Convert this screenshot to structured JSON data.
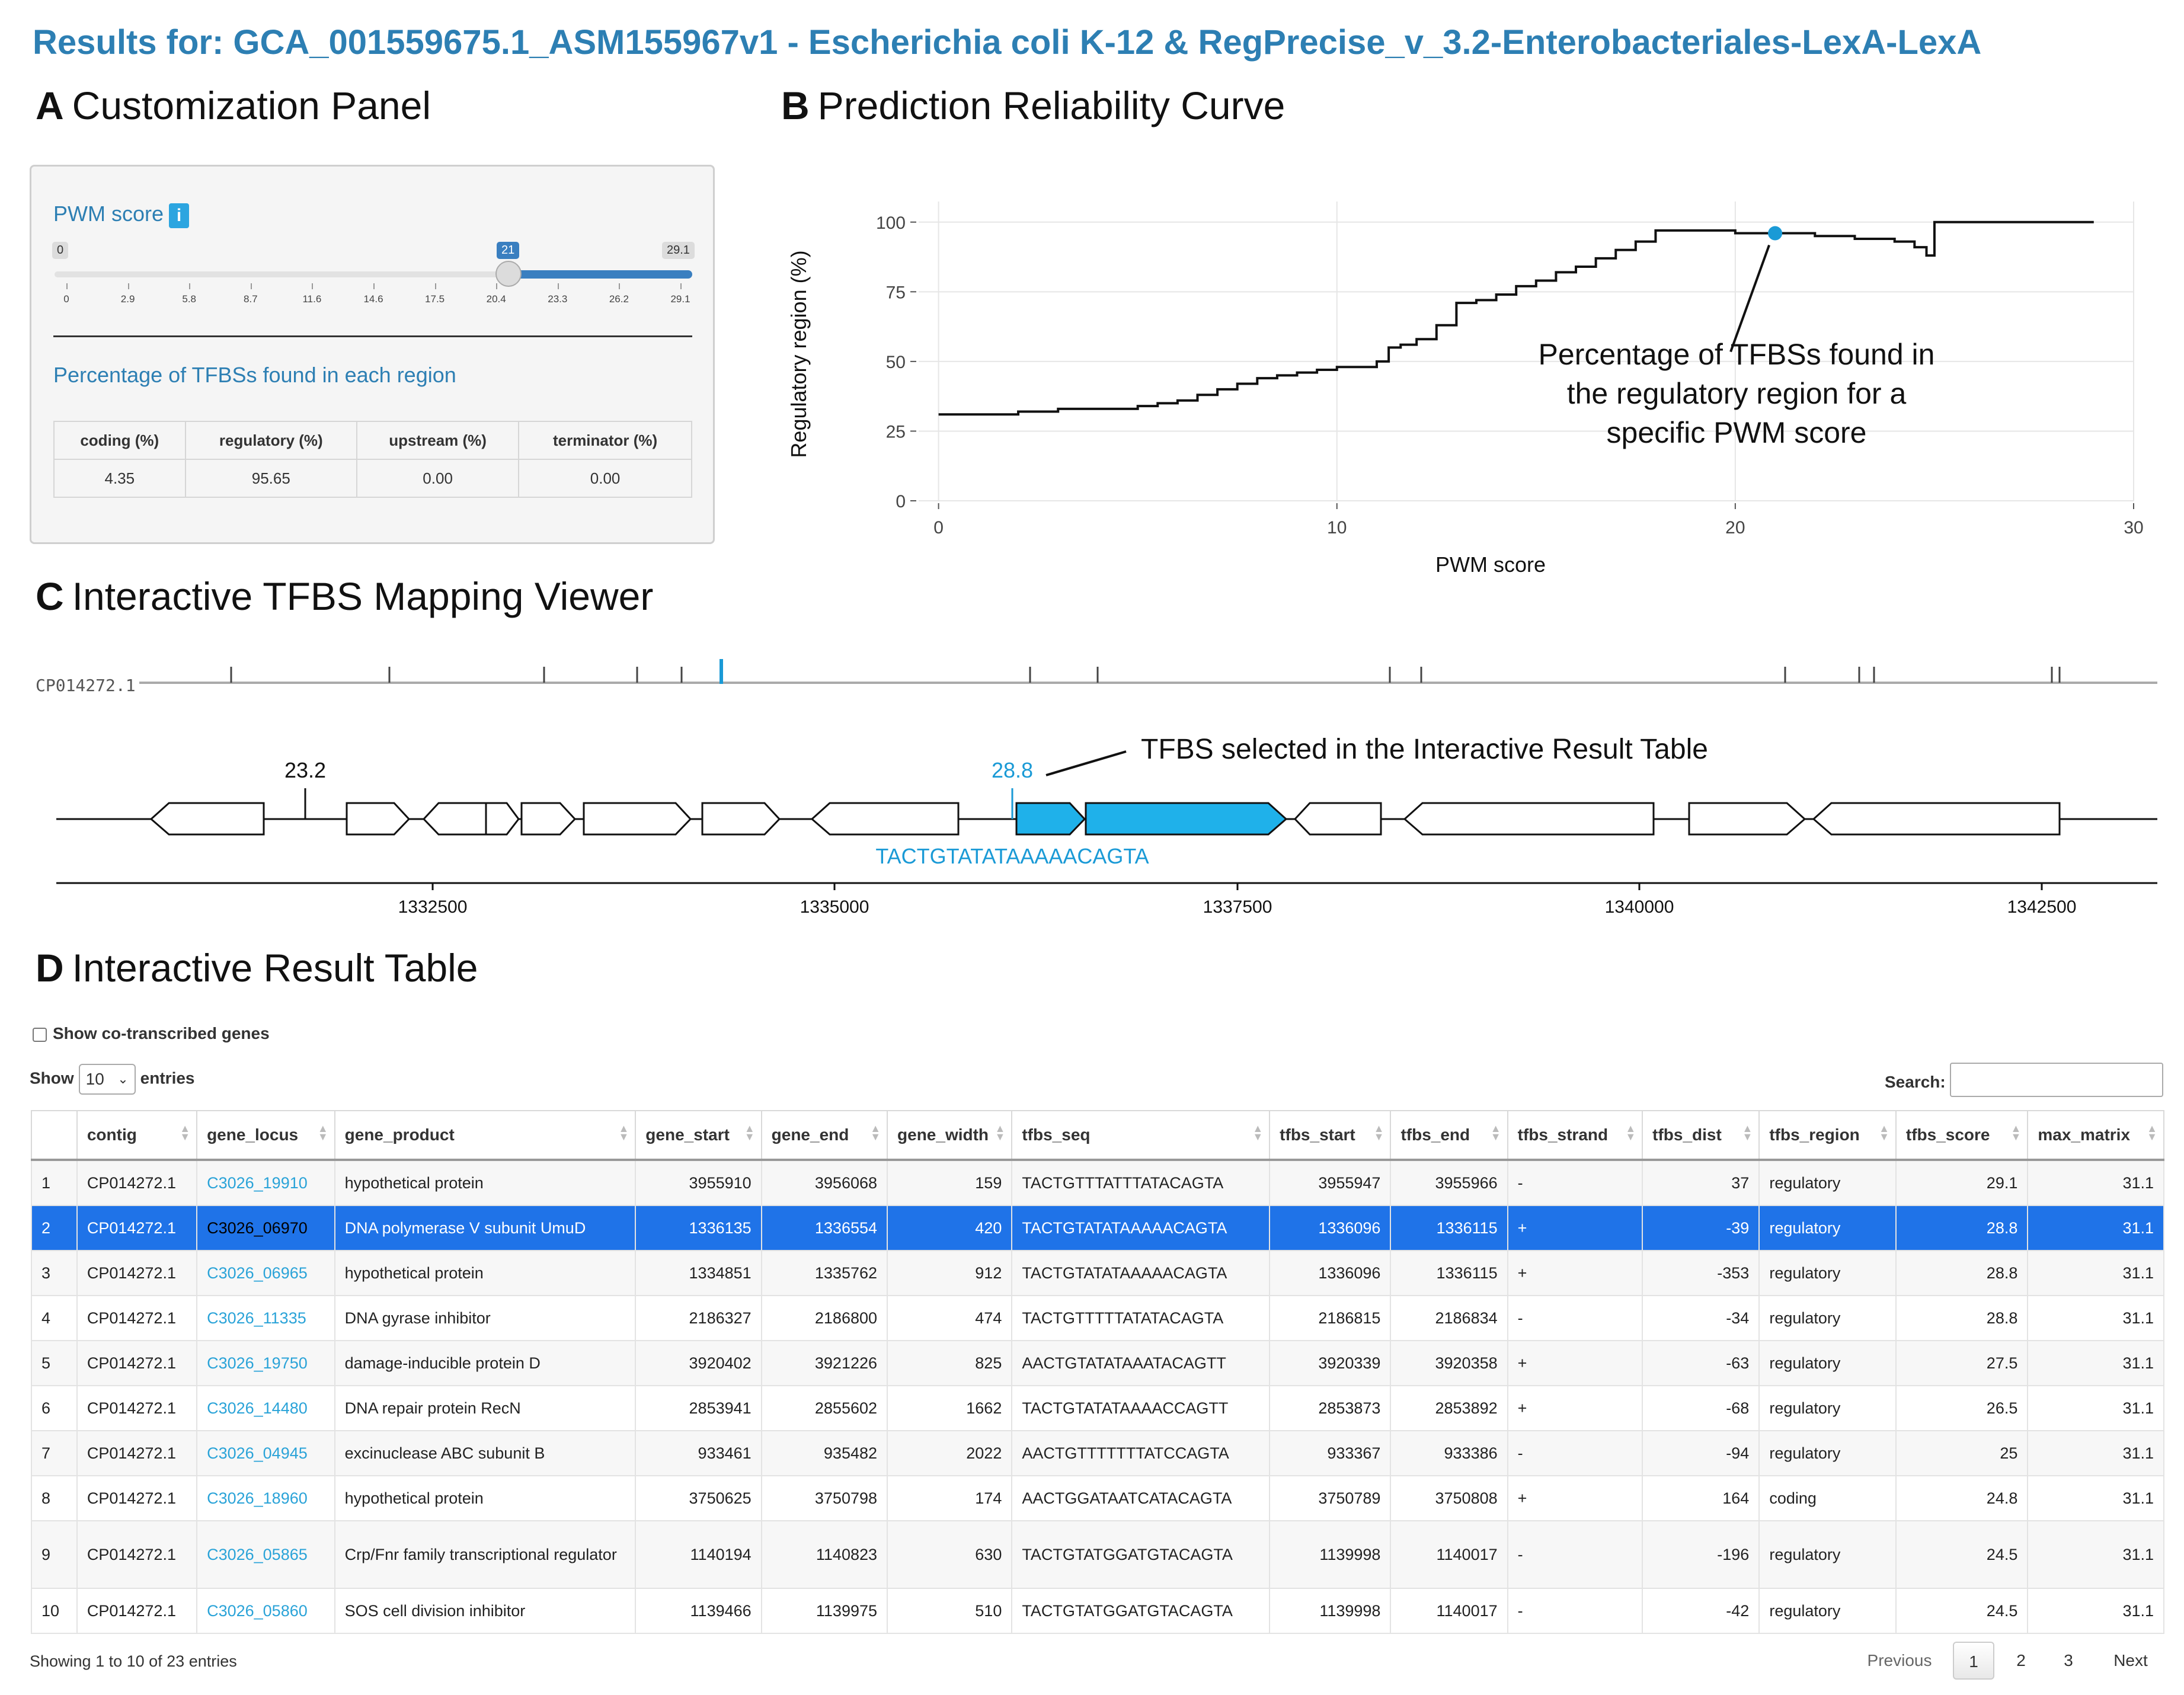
{
  "page_title": "Results for: GCA_001559675.1_ASM155967v1 - Escherichia coli K-12 & RegPrecise_v_3.2-Enterobacteriales-LexA-LexA",
  "sections": {
    "a": {
      "letter": "A",
      "title": "Customization Panel"
    },
    "b": {
      "letter": "B",
      "title": "Prediction Reliability Curve"
    },
    "c": {
      "letter": "C",
      "title": "Interactive TFBS Mapping Viewer"
    },
    "d": {
      "letter": "D",
      "title": "Interactive Result Table"
    }
  },
  "customization_panel": {
    "pwm_label": "PWM score",
    "info_icon": "i",
    "slider": {
      "min_label": "0",
      "max_label": "29.1",
      "value_label": "21",
      "value": 21,
      "ticks": [
        "0",
        "2.9",
        "5.8",
        "8.7",
        "11.6",
        "14.6",
        "17.5",
        "20.4",
        "23.3",
        "26.2",
        "29.1"
      ]
    },
    "percentage_title": "Percentage of TFBSs found in each region",
    "table_headers": [
      "coding (%)",
      "regulatory (%)",
      "upstream (%)",
      "terminator (%)"
    ],
    "table_values": [
      "4.35",
      "95.65",
      "0.00",
      "0.00"
    ]
  },
  "chart_data": {
    "type": "line",
    "title": "",
    "xlabel": "PWM score",
    "ylabel": "Regulatory region (%)",
    "xlim": [
      -0.5,
      30
    ],
    "ylim": [
      0,
      100
    ],
    "xticks": [
      "0",
      "10",
      "20",
      "30"
    ],
    "yticks": [
      "0",
      "25",
      "50",
      "75",
      "100"
    ],
    "series": [
      {
        "x": [
          0,
          1,
          2,
          3,
          4,
          5,
          5.5,
          6,
          6.5,
          7,
          7.5,
          8,
          8.5,
          9,
          9.5,
          10,
          10.5,
          11,
          11.3,
          11.6,
          12,
          12.5,
          13,
          13.5,
          14,
          14.5,
          15,
          15.5,
          16,
          16.5,
          17,
          17.5,
          18,
          18.5,
          19,
          20,
          21,
          22,
          23,
          24,
          24.5,
          24.8,
          25,
          26,
          27,
          28,
          29
        ],
        "y": [
          31,
          31,
          32,
          33,
          33,
          34,
          35,
          36,
          38,
          40,
          42,
          44,
          45,
          46,
          47,
          48,
          48,
          50,
          55,
          56,
          58,
          63,
          71,
          72,
          74,
          77,
          79,
          82,
          84,
          87,
          90,
          93,
          97,
          97,
          97,
          96,
          96,
          95,
          94,
          93,
          91,
          88,
          100,
          100,
          100,
          100,
          100
        ]
      }
    ],
    "highlight_point": {
      "x": 21,
      "y": 96
    },
    "grid": true
  },
  "curve_annotation": "Percentage of TFBSs found in the regulatory region for a specific PWM score",
  "mapping_viewer": {
    "contig": "CP014272.1",
    "score_left": "23.2",
    "score_selected": "28.8",
    "selected_annotation": "TFBS selected in the Interactive Result Table",
    "selected_seq": "TACTGTATATAAAAACAGTA",
    "axis_ticks": [
      "1332500",
      "1335000",
      "1337500",
      "1340000",
      "1342500"
    ]
  },
  "result_table": {
    "show_cotranscribed_label": "Show co-transcribed genes",
    "show_label": "Show",
    "entries_value": "10",
    "entries_label": "entries",
    "search_label": "Search:",
    "search_value": "",
    "headers": [
      "",
      "contig",
      "gene_locus",
      "gene_product",
      "gene_start",
      "gene_end",
      "gene_width",
      "tfbs_seq",
      "tfbs_start",
      "tfbs_end",
      "tfbs_strand",
      "tfbs_dist",
      "tfbs_region",
      "tfbs_score",
      "max_matrix"
    ],
    "rows": [
      [
        "1",
        "CP014272.1",
        "C3026_19910",
        "hypothetical protein",
        "3955910",
        "3956068",
        "159",
        "TACTGTTTATTTATACAGTA",
        "3955947",
        "3955966",
        "-",
        "37",
        "regulatory",
        "29.1",
        "31.1"
      ],
      [
        "2",
        "CP014272.1",
        "C3026_06970",
        "DNA polymerase V subunit UmuD",
        "1336135",
        "1336554",
        "420",
        "TACTGTATATAAAAACAGTA",
        "1336096",
        "1336115",
        "+",
        "-39",
        "regulatory",
        "28.8",
        "31.1"
      ],
      [
        "3",
        "CP014272.1",
        "C3026_06965",
        "hypothetical protein",
        "1334851",
        "1335762",
        "912",
        "TACTGTATATAAAAACAGTA",
        "1336096",
        "1336115",
        "+",
        "-353",
        "regulatory",
        "28.8",
        "31.1"
      ],
      [
        "4",
        "CP014272.1",
        "C3026_11335",
        "DNA gyrase inhibitor",
        "2186327",
        "2186800",
        "474",
        "TACTGTTTTTATATACAGTA",
        "2186815",
        "2186834",
        "-",
        "-34",
        "regulatory",
        "28.8",
        "31.1"
      ],
      [
        "5",
        "CP014272.1",
        "C3026_19750",
        "damage-inducible protein D",
        "3920402",
        "3921226",
        "825",
        "AACTGTATATAAATACAGTT",
        "3920339",
        "3920358",
        "+",
        "-63",
        "regulatory",
        "27.5",
        "31.1"
      ],
      [
        "6",
        "CP014272.1",
        "C3026_14480",
        "DNA repair protein RecN",
        "2853941",
        "2855602",
        "1662",
        "TACTGTATATAAAACCAGTT",
        "2853873",
        "2853892",
        "+",
        "-68",
        "regulatory",
        "26.5",
        "31.1"
      ],
      [
        "7",
        "CP014272.1",
        "C3026_04945",
        "excinuclease ABC subunit B",
        "933461",
        "935482",
        "2022",
        "AACTGTTTTTTTATCCAGTA",
        "933367",
        "933386",
        "-",
        "-94",
        "regulatory",
        "25",
        "31.1"
      ],
      [
        "8",
        "CP014272.1",
        "C3026_18960",
        "hypothetical protein",
        "3750625",
        "3750798",
        "174",
        "AACTGGATAATCATACAGTA",
        "3750789",
        "3750808",
        "+",
        "164",
        "coding",
        "24.8",
        "31.1"
      ],
      [
        "9",
        "CP014272.1",
        "C3026_05865",
        "Crp/Fnr family transcriptional regulator",
        "1140194",
        "1140823",
        "630",
        "TACTGTATGGATGTACAGTA",
        "1139998",
        "1140017",
        "-",
        "-196",
        "regulatory",
        "24.5",
        "31.1"
      ],
      [
        "10",
        "CP014272.1",
        "C3026_05860",
        "SOS cell division inhibitor",
        "1139466",
        "1139975",
        "510",
        "TACTGTATGGATGTACAGTA",
        "1139998",
        "1140017",
        "-",
        "-42",
        "regulatory",
        "24.5",
        "31.1"
      ]
    ],
    "selected_row": 2,
    "footer_info": "Showing 1 to 10 of 23 entries",
    "pagination": {
      "previous": "Previous",
      "pages": [
        "1",
        "2",
        "3"
      ],
      "next": "Next",
      "current": "1"
    }
  }
}
